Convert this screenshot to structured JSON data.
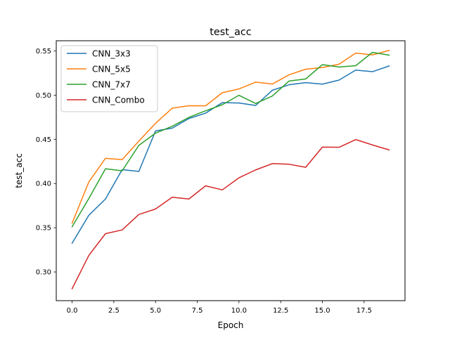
{
  "chart_data": {
    "type": "line",
    "title": "test_acc",
    "xlabel": "Epoch",
    "ylabel": "test_acc",
    "xlim": [
      -0.95,
      19.95
    ],
    "ylim": [
      0.2675,
      0.5615
    ],
    "x_ticks": [
      0.0,
      2.5,
      5.0,
      7.5,
      10.0,
      12.5,
      15.0,
      17.5
    ],
    "x_tick_labels": [
      "0.0",
      "2.5",
      "5.0",
      "7.5",
      "10.0",
      "12.5",
      "15.0",
      "17.5"
    ],
    "y_ticks": [
      0.3,
      0.35,
      0.4,
      0.45,
      0.5,
      0.55
    ],
    "y_tick_labels": [
      "0.30",
      "0.35",
      "0.40",
      "0.45",
      "0.50",
      "0.55"
    ],
    "grid": false,
    "legend_position": "upper-left",
    "x": [
      0,
      1,
      2,
      3,
      4,
      5,
      6,
      7,
      8,
      9,
      10,
      11,
      12,
      13,
      14,
      15,
      16,
      17,
      18,
      19
    ],
    "series": [
      {
        "name": "CNN_3x3",
        "color": "#1f77b4",
        "values": [
          0.3325,
          0.364,
          0.3825,
          0.4157,
          0.4137,
          0.4595,
          0.4627,
          0.4735,
          0.4796,
          0.4915,
          0.4911,
          0.4883,
          0.5055,
          0.5117,
          0.5141,
          0.5124,
          0.517,
          0.5283,
          0.5265,
          0.533
        ]
      },
      {
        "name": "CNN_5x5",
        "color": "#ff7f0e",
        "values": [
          0.3552,
          0.4017,
          0.4285,
          0.427,
          0.448,
          0.4681,
          0.4852,
          0.488,
          0.4879,
          0.5027,
          0.507,
          0.5147,
          0.5125,
          0.523,
          0.5293,
          0.5312,
          0.535,
          0.5476,
          0.5455,
          0.5505
        ]
      },
      {
        "name": "CNN_7x7",
        "color": "#2ca02c",
        "values": [
          0.351,
          0.383,
          0.4167,
          0.4144,
          0.4432,
          0.457,
          0.4648,
          0.4748,
          0.4823,
          0.4891,
          0.4998,
          0.4905,
          0.499,
          0.5159,
          0.5183,
          0.5345,
          0.5318,
          0.5333,
          0.5484,
          0.5452
        ]
      },
      {
        "name": "CNN_Combo",
        "color": "#d62728",
        "values": [
          0.281,
          0.3186,
          0.3433,
          0.3475,
          0.365,
          0.3712,
          0.3845,
          0.3825,
          0.3974,
          0.3928,
          0.4065,
          0.4154,
          0.4225,
          0.4218,
          0.4184,
          0.4412,
          0.441,
          0.4497,
          0.4436,
          0.438
        ]
      }
    ]
  }
}
